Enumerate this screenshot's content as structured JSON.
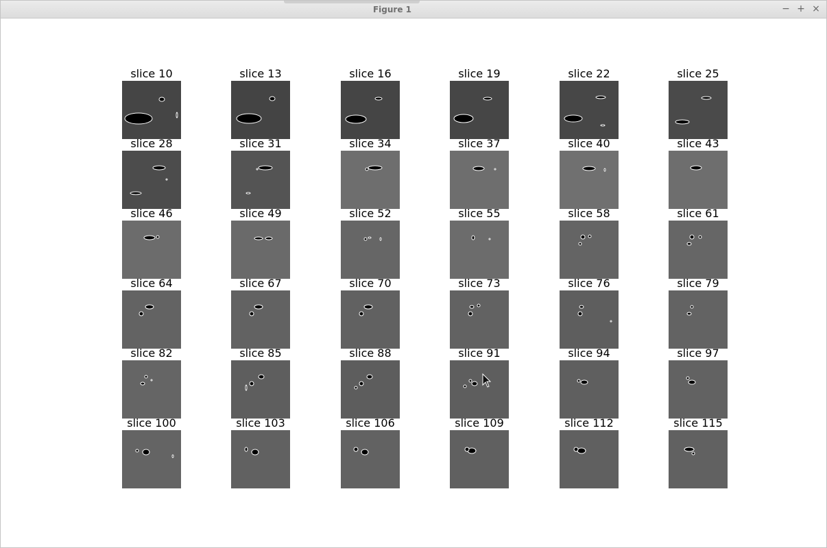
{
  "window": {
    "title": "Figure 1",
    "controls": {
      "minimize": "−",
      "maximize": "+",
      "close": "×"
    }
  },
  "grid": {
    "rows": [
      [
        {
          "label": "slice 10",
          "tone": "#454545"
        },
        {
          "label": "slice 13",
          "tone": "#444444"
        },
        {
          "label": "slice 16",
          "tone": "#454545"
        },
        {
          "label": "slice 19",
          "tone": "#464646"
        },
        {
          "label": "slice 22",
          "tone": "#474747"
        },
        {
          "label": "slice 25",
          "tone": "#4a4a4a"
        }
      ],
      [
        {
          "label": "slice 28",
          "tone": "#4c4c4c"
        },
        {
          "label": "slice 31",
          "tone": "#545454"
        },
        {
          "label": "slice 34",
          "tone": "#6e6e6e"
        },
        {
          "label": "slice 37",
          "tone": "#6e6e6e"
        },
        {
          "label": "slice 40",
          "tone": "#707070"
        },
        {
          "label": "slice 43",
          "tone": "#6e6e6e"
        }
      ],
      [
        {
          "label": "slice 46",
          "tone": "#6c6c6c"
        },
        {
          "label": "slice 49",
          "tone": "#6a6a6a"
        },
        {
          "label": "slice 52",
          "tone": "#666666"
        },
        {
          "label": "slice 55",
          "tone": "#6c6c6c"
        },
        {
          "label": "slice 58",
          "tone": "#646464"
        },
        {
          "label": "slice 61",
          "tone": "#666666"
        }
      ],
      [
        {
          "label": "slice 64",
          "tone": "#636363"
        },
        {
          "label": "slice 67",
          "tone": "#626262"
        },
        {
          "label": "slice 70",
          "tone": "#616161"
        },
        {
          "label": "slice 73",
          "tone": "#626262"
        },
        {
          "label": "slice 76",
          "tone": "#5e5e5e"
        },
        {
          "label": "slice 79",
          "tone": "#636363"
        }
      ],
      [
        {
          "label": "slice 82",
          "tone": "#656565"
        },
        {
          "label": "slice 85",
          "tone": "#5e5e5e"
        },
        {
          "label": "slice 88",
          "tone": "#5d5d5d"
        },
        {
          "label": "slice 91",
          "tone": "#5e5e5e"
        },
        {
          "label": "slice 94",
          "tone": "#5f5f5f"
        },
        {
          "label": "slice 97",
          "tone": "#626262"
        }
      ],
      [
        {
          "label": "slice 100",
          "tone": "#646464"
        },
        {
          "label": "slice 103",
          "tone": "#616161"
        },
        {
          "label": "slice 106",
          "tone": "#626262"
        },
        {
          "label": "slice 109",
          "tone": "#606060"
        },
        {
          "label": "slice 112",
          "tone": "#606060"
        },
        {
          "label": "slice 115",
          "tone": "#616161"
        }
      ]
    ]
  }
}
